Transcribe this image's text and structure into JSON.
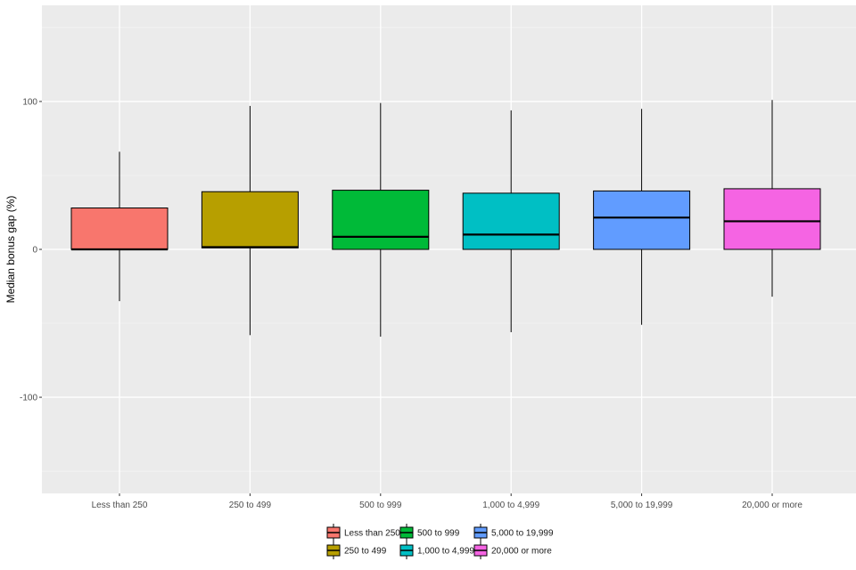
{
  "chart_data": {
    "type": "boxplot",
    "title": "",
    "xlabel": "",
    "ylabel": "Median bonus gap (%)",
    "ylim": [
      -165,
      165
    ],
    "yticks": [
      -100,
      0,
      100
    ],
    "grid": true,
    "legend_position": "bottom",
    "categories": [
      "Less than 250",
      "250 to 499",
      "500 to 999",
      "1,000 to 4,999",
      "5,000 to 19,999",
      "20,000 or more"
    ],
    "colors": [
      "#F8766D",
      "#B79F00",
      "#00BA38",
      "#00BFC4",
      "#619CFF",
      "#F564E3"
    ],
    "boxes": [
      {
        "category": "Less than 250",
        "whisker_low": -35,
        "q1": 0,
        "median": 0,
        "q3": 28,
        "whisker_high": 66
      },
      {
        "category": "250 to 499",
        "whisker_low": -58,
        "q1": 1,
        "median": 1.5,
        "q3": 39,
        "whisker_high": 97
      },
      {
        "category": "500 to 999",
        "whisker_low": -59,
        "q1": 0,
        "median": 8.5,
        "q3": 40,
        "whisker_high": 99
      },
      {
        "category": "1,000 to 4,999",
        "whisker_low": -56,
        "q1": 0,
        "median": 10,
        "q3": 38,
        "whisker_high": 94
      },
      {
        "category": "5,000 to 19,999",
        "whisker_low": -51,
        "q1": 0,
        "median": 21.5,
        "q3": 39.5,
        "whisker_high": 95
      },
      {
        "category": "20,000 or more",
        "whisker_low": -32,
        "q1": 0,
        "median": 19,
        "q3": 41,
        "whisker_high": 101
      }
    ],
    "legend": [
      "Less than 250",
      "250 to 499",
      "500 to 999",
      "1,000 to 4,999",
      "5,000 to 19,999",
      "20,000 or more"
    ]
  }
}
